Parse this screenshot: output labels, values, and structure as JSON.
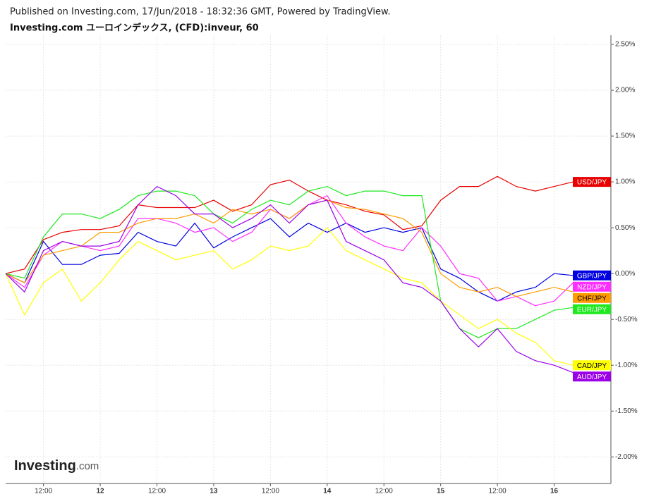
{
  "chart_data": {
    "type": "line",
    "published": "Published on Investing.com, 17/Jun/2018 - 18:32:36 GMT, Powered by TradingView.",
    "title": "Investing.com ユーロインデックス, (CFD):inveur, 60",
    "watermark": {
      "brand": "Investing",
      "suffix": ".com"
    },
    "x": [
      0,
      4,
      8,
      12,
      16,
      20,
      24,
      28,
      32,
      36,
      40,
      44,
      48,
      52,
      56,
      60,
      64,
      68,
      72,
      76,
      80,
      84,
      88,
      92,
      96,
      100,
      104,
      108,
      112,
      116,
      120
    ],
    "xlim": [
      0,
      128
    ],
    "xticks": [
      {
        "value": 8,
        "label": "12:00"
      },
      {
        "value": 20,
        "label": "12"
      },
      {
        "value": 32,
        "label": "12:00"
      },
      {
        "value": 44,
        "label": "13"
      },
      {
        "value": 56,
        "label": "12:00"
      },
      {
        "value": 68,
        "label": "14"
      },
      {
        "value": 80,
        "label": "12:00"
      },
      {
        "value": 92,
        "label": "15"
      },
      {
        "value": 104,
        "label": "12:00"
      },
      {
        "value": 116,
        "label": "16"
      }
    ],
    "ylim": [
      -2.29,
      2.6
    ],
    "yticks": [
      {
        "value": 2.5,
        "label": "2.50%"
      },
      {
        "value": 2,
        "label": "2.00%"
      },
      {
        "value": 1.5,
        "label": "1.50%"
      },
      {
        "value": 1,
        "label": "1.00%"
      },
      {
        "value": 0.5,
        "label": "0.50%"
      },
      {
        "value": 0,
        "label": "0.00%"
      },
      {
        "value": -0.5,
        "label": "-0.50%"
      },
      {
        "value": -1,
        "label": "-1.00%"
      },
      {
        "value": -1.5,
        "label": "-1.50%"
      },
      {
        "value": -2,
        "label": "-2.00%"
      }
    ],
    "grid": true,
    "series": [
      {
        "name": "USD/JPY",
        "color": "#e80000",
        "values": [
          0,
          0.05,
          0.37,
          0.45,
          0.48,
          0.48,
          0.52,
          0.75,
          0.72,
          0.72,
          0.72,
          0.8,
          0.68,
          0.75,
          0.97,
          1.02,
          0.9,
          0.8,
          0.75,
          0.68,
          0.64,
          0.48,
          0.52,
          0.8,
          0.95,
          0.95,
          1.06,
          0.95,
          0.9,
          0.95,
          1.0
        ]
      },
      {
        "name": "GBP/JPY",
        "color": "#0000e0",
        "values": [
          0,
          -0.1,
          0.35,
          0.1,
          0.1,
          0.2,
          0.22,
          0.45,
          0.35,
          0.3,
          0.55,
          0.28,
          0.4,
          0.5,
          0.6,
          0.4,
          0.55,
          0.45,
          0.55,
          0.45,
          0.5,
          0.45,
          0.5,
          0.05,
          -0.05,
          -0.2,
          -0.3,
          -0.2,
          -0.15,
          0.0,
          -0.02
        ]
      },
      {
        "name": "NZD/JPY",
        "color": "#ff2dff",
        "values": [
          0,
          -0.15,
          0.2,
          0.35,
          0.3,
          0.25,
          0.3,
          0.6,
          0.6,
          0.55,
          0.45,
          0.5,
          0.35,
          0.45,
          0.7,
          0.6,
          0.75,
          0.85,
          0.55,
          0.4,
          0.3,
          0.25,
          0.5,
          0.3,
          0.0,
          -0.05,
          -0.3,
          -0.25,
          -0.35,
          -0.3,
          -0.1
        ]
      },
      {
        "name": "CHF/JPY",
        "color": "#ff9a00",
        "values": [
          0,
          -0.1,
          0.2,
          0.25,
          0.3,
          0.45,
          0.45,
          0.55,
          0.6,
          0.6,
          0.65,
          0.55,
          0.7,
          0.65,
          0.7,
          0.6,
          0.75,
          0.8,
          0.72,
          0.7,
          0.65,
          0.6,
          0.45,
          0.0,
          -0.15,
          -0.2,
          -0.15,
          -0.25,
          -0.2,
          -0.15,
          -0.2
        ]
      },
      {
        "name": "EUR/JPY",
        "color": "#1ee81e",
        "values": [
          0,
          -0.05,
          0.4,
          0.65,
          0.65,
          0.6,
          0.7,
          0.85,
          0.9,
          0.9,
          0.85,
          0.65,
          0.55,
          0.7,
          0.8,
          0.75,
          0.9,
          0.95,
          0.85,
          0.9,
          0.9,
          0.85,
          0.85,
          -0.3,
          -0.6,
          -0.7,
          -0.6,
          -0.6,
          -0.5,
          -0.4,
          -0.37
        ]
      },
      {
        "name": "CAD/JPY",
        "color": "#ffff00",
        "values": [
          0,
          -0.45,
          -0.1,
          0.05,
          -0.3,
          -0.1,
          0.15,
          0.35,
          0.25,
          0.15,
          0.2,
          0.25,
          0.05,
          0.15,
          0.3,
          0.25,
          0.3,
          0.5,
          0.25,
          0.15,
          0.05,
          -0.05,
          -0.1,
          -0.3,
          -0.45,
          -0.6,
          -0.5,
          -0.65,
          -0.75,
          -0.95,
          -1.0
        ]
      },
      {
        "name": "AUD/JPY",
        "color": "#9b00e8",
        "values": [
          0,
          -0.2,
          0.25,
          0.35,
          0.3,
          0.3,
          0.35,
          0.75,
          0.95,
          0.85,
          0.65,
          0.65,
          0.5,
          0.6,
          0.75,
          0.55,
          0.75,
          0.8,
          0.35,
          0.25,
          0.15,
          -0.1,
          -0.15,
          -0.3,
          -0.6,
          -0.8,
          -0.6,
          -0.85,
          -0.95,
          -1.0,
          -1.08
        ]
      }
    ]
  }
}
